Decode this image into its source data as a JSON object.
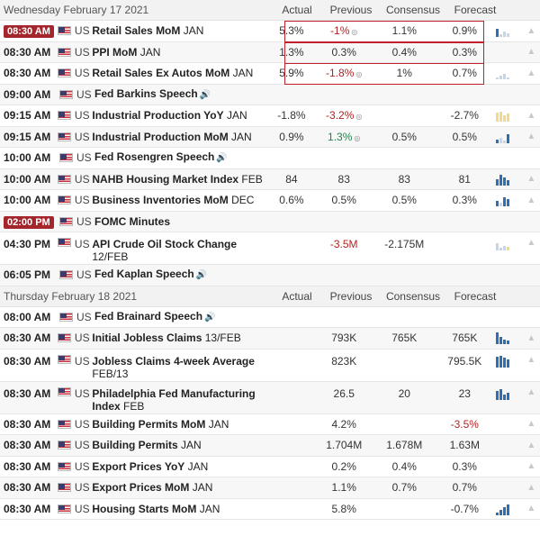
{
  "columns": {
    "actual": "Actual",
    "previous": "Previous",
    "consensus": "Consensus",
    "forecast": "Forecast"
  },
  "days": [
    {
      "date": "Wednesday February 17 2021",
      "events": [
        {
          "time": "08:30 AM",
          "highlight": true,
          "ccy": "US",
          "name": "Retail Sales MoM",
          "period": "JAN",
          "actual": "5.3%",
          "previous": "-1%",
          "prev_color": "red",
          "prev_rev": true,
          "consensus": "1.1%",
          "forecast": "0.9%",
          "chart": "lite"
        },
        {
          "time": "08:30 AM",
          "ccy": "US",
          "name": "PPI MoM",
          "period": "JAN",
          "actual": "1.3%",
          "previous": "0.3%",
          "consensus": "0.4%",
          "forecast": "0.3%",
          "chart": "none"
        },
        {
          "time": "08:30 AM",
          "ccy": "US",
          "name": "Retail Sales Ex Autos MoM",
          "period": "JAN",
          "actual": "5.9%",
          "previous": "-1.8%",
          "prev_color": "red",
          "prev_rev": true,
          "consensus": "1%",
          "forecast": "0.7%",
          "chart": "lite2"
        },
        {
          "time": "09:00 AM",
          "ccy": "US",
          "name": "Fed Barkins Speech",
          "period": "",
          "speech": true
        },
        {
          "time": "09:15 AM",
          "ccy": "US",
          "name": "Industrial Production YoY",
          "period": "JAN",
          "actual": "-1.8%",
          "previous": "-3.2%",
          "prev_color": "red",
          "prev_rev": true,
          "consensus": "",
          "forecast": "-2.7%",
          "chart": "yel"
        },
        {
          "time": "09:15 AM",
          "ccy": "US",
          "name": "Industrial Production MoM",
          "period": "JAN",
          "actual": "0.9%",
          "previous": "1.3%",
          "prev_color": "green",
          "prev_rev": true,
          "consensus": "0.5%",
          "forecast": "0.5%",
          "chart": "blue1"
        },
        {
          "time": "10:00 AM",
          "ccy": "US",
          "name": "Fed Rosengren Speech",
          "period": "",
          "speech": true
        },
        {
          "time": "10:00 AM",
          "ccy": "US",
          "name": "NAHB Housing Market Index",
          "period": "FEB",
          "actual": "84",
          "previous": "83",
          "consensus": "83",
          "forecast": "81",
          "chart": "blue2"
        },
        {
          "time": "10:00 AM",
          "ccy": "US",
          "name": "Business Inventories MoM",
          "period": "DEC",
          "actual": "0.6%",
          "previous": "0.5%",
          "consensus": "0.5%",
          "forecast": "0.3%",
          "chart": "blue3"
        },
        {
          "time": "02:00 PM",
          "highlight": true,
          "ccy": "US",
          "name": "FOMC Minutes",
          "period": ""
        },
        {
          "time": "04:30 PM",
          "ccy": "US",
          "name": "API Crude Oil Stock Change",
          "period": "12/FEB",
          "tall": true,
          "actual": "",
          "previous": "-3.5M",
          "prev_color": "red",
          "consensus": "-2.175M",
          "forecast": "",
          "chart": "lite3"
        },
        {
          "time": "06:05 PM",
          "ccy": "US",
          "name": "Fed Kaplan Speech",
          "period": "",
          "speech": true
        }
      ]
    },
    {
      "date": "Thursday February 18 2021",
      "events": [
        {
          "time": "08:00 AM",
          "ccy": "US",
          "name": "Fed Brainard Speech",
          "period": "",
          "speech": true
        },
        {
          "time": "08:30 AM",
          "ccy": "US",
          "name": "Initial Jobless Claims",
          "period": "13/FEB",
          "actual": "",
          "previous": "793K",
          "consensus": "765K",
          "forecast": "765K",
          "chart": "blue4"
        },
        {
          "time": "08:30 AM",
          "ccy": "US",
          "name": "Jobless Claims 4-week Average",
          "period": "FEB/13",
          "tall": true,
          "actual": "",
          "previous": "823K",
          "consensus": "",
          "forecast": "795.5K",
          "chart": "blue5"
        },
        {
          "time": "08:30 AM",
          "ccy": "US",
          "name": "Philadelphia Fed Manufacturing Index",
          "period": "FEB",
          "tall": true,
          "actual": "",
          "previous": "26.5",
          "consensus": "20",
          "forecast": "23",
          "chart": "blue6"
        },
        {
          "time": "08:30 AM",
          "ccy": "US",
          "name": "Building Permits MoM",
          "period": "JAN",
          "actual": "",
          "previous": "4.2%",
          "consensus": "",
          "forecast": "-3.5%",
          "fc_color": "red",
          "chart": "none"
        },
        {
          "time": "08:30 AM",
          "ccy": "US",
          "name": "Building Permits",
          "period": "JAN",
          "actual": "",
          "previous": "1.704M",
          "consensus": "1.678M",
          "forecast": "1.63M",
          "chart": "none"
        },
        {
          "time": "08:30 AM",
          "ccy": "US",
          "name": "Export Prices YoY",
          "period": "JAN",
          "actual": "",
          "previous": "0.2%",
          "consensus": "0.4%",
          "forecast": "0.3%",
          "chart": "none"
        },
        {
          "time": "08:30 AM",
          "ccy": "US",
          "name": "Export Prices MoM",
          "period": "JAN",
          "actual": "",
          "previous": "1.1%",
          "consensus": "0.7%",
          "forecast": "0.7%",
          "chart": "none"
        },
        {
          "time": "08:30 AM",
          "ccy": "US",
          "name": "Housing Starts MoM",
          "period": "JAN",
          "actual": "",
          "previous": "5.8%",
          "consensus": "",
          "forecast": "-0.7%",
          "chart": "blue7"
        }
      ]
    }
  ],
  "colors": {
    "highlight_box": "#c0202a",
    "badge": "#a4262c",
    "negative": "#b22222",
    "positive": "#1e8449"
  }
}
